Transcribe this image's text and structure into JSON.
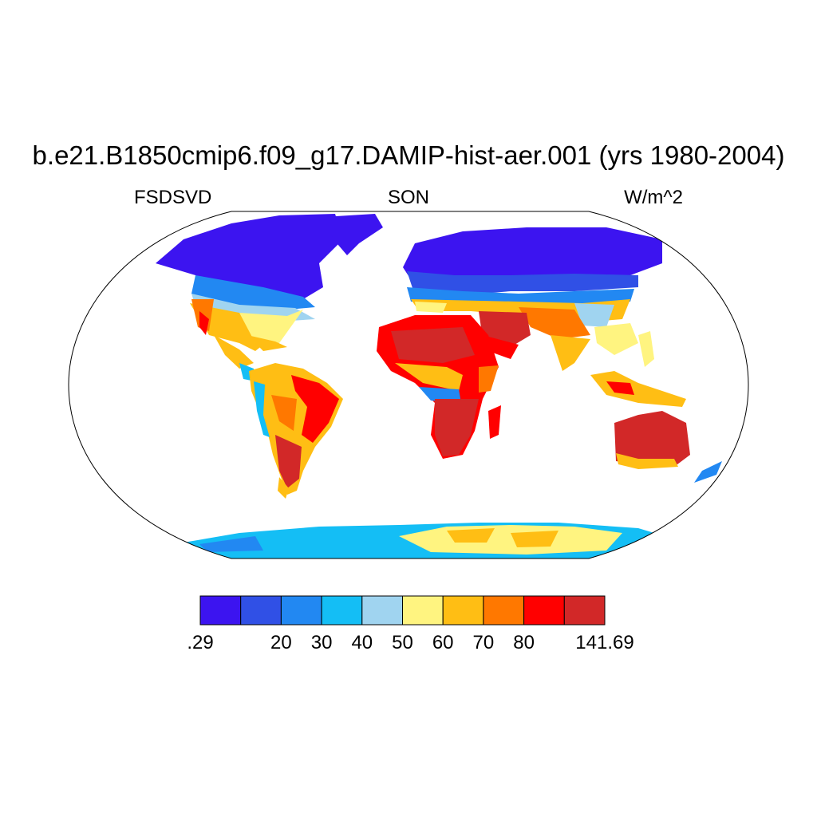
{
  "title": "b.e21.B1850cmip6.f09_g17.DAMIP-hist-aer.001 (yrs 1980-2004)",
  "left_label": "FSDSVD",
  "center_label": "SON",
  "right_label": "W/m^2",
  "colorbar": {
    "colors": [
      "#3c14f0",
      "#3050e6",
      "#2288f2",
      "#14bef5",
      "#a0d4f0",
      "#fff480",
      "#ffbe14",
      "#ff7800",
      "#ff0000",
      "#d22828"
    ],
    "labels": [
      ".29",
      "20",
      "30",
      "40",
      "50",
      "60",
      "70",
      "80",
      "141.69"
    ]
  }
}
